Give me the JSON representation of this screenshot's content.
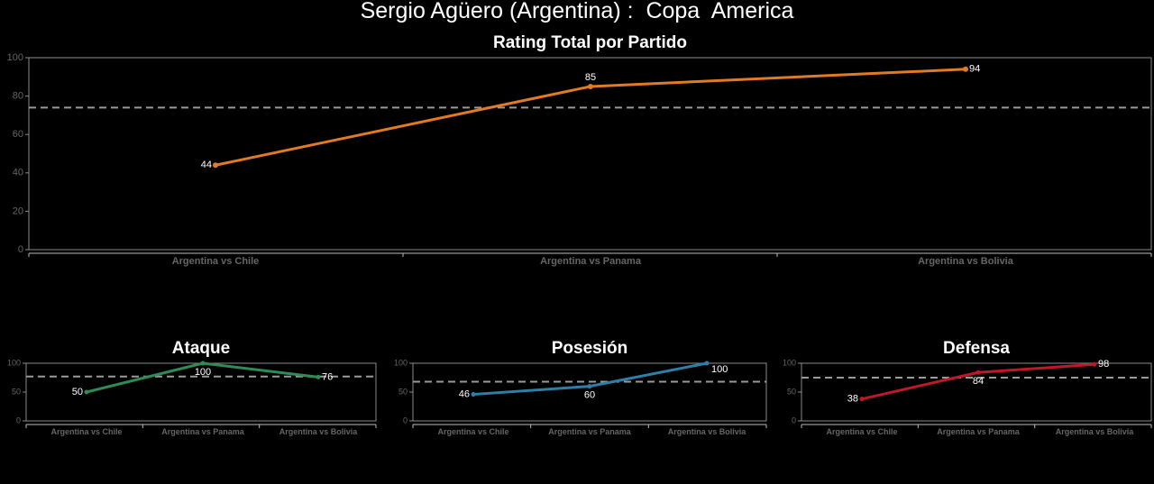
{
  "page": {
    "title": "Sergio Agüero (Argentina) :  Copa  America"
  },
  "chart_data": [
    {
      "id": "total",
      "type": "line",
      "title": "Rating Total por Partido",
      "categories": [
        "Argentina vs Chile",
        "Argentina vs Panama",
        "Argentina vs Bolivia"
      ],
      "values": [
        44,
        85,
        94
      ],
      "value_labels": [
        "44",
        "85",
        "94"
      ],
      "reference_line": 74,
      "ylim": [
        0,
        100
      ],
      "yticks": [
        0,
        20,
        40,
        60,
        80,
        100
      ],
      "color": "#e07b24"
    },
    {
      "id": "ataque",
      "type": "line",
      "title": "Ataque",
      "categories": [
        "Argentina vs Chile",
        "Argentina vs Panama",
        "Argentina vs Bolivia"
      ],
      "values": [
        50,
        100,
        76
      ],
      "value_labels": [
        "50",
        "100",
        "76"
      ],
      "reference_line": 77,
      "ylim": [
        0,
        100
      ],
      "yticks": [
        0,
        50,
        100
      ],
      "color": "#2e8b57"
    },
    {
      "id": "posesion",
      "type": "line",
      "title": "Posesión",
      "categories": [
        "Argentina vs Chile",
        "Argentina vs Panama",
        "Argentina vs Bolivia"
      ],
      "values": [
        46,
        60,
        100
      ],
      "value_labels": [
        "46",
        "60",
        "100"
      ],
      "reference_line": 68,
      "ylim": [
        0,
        100
      ],
      "yticks": [
        0,
        50,
        100
      ],
      "color": "#2e7fa8"
    },
    {
      "id": "defensa",
      "type": "line",
      "title": "Defensa",
      "categories": [
        "Argentina vs Chile",
        "Argentina vs Panama",
        "Argentina vs Bolivia"
      ],
      "values": [
        38,
        84,
        98
      ],
      "value_labels": [
        "38",
        "84",
        "98"
      ],
      "reference_line": 75,
      "ylim": [
        0,
        100
      ],
      "yticks": [
        0,
        50,
        100
      ],
      "color": "#c0182a"
    }
  ]
}
